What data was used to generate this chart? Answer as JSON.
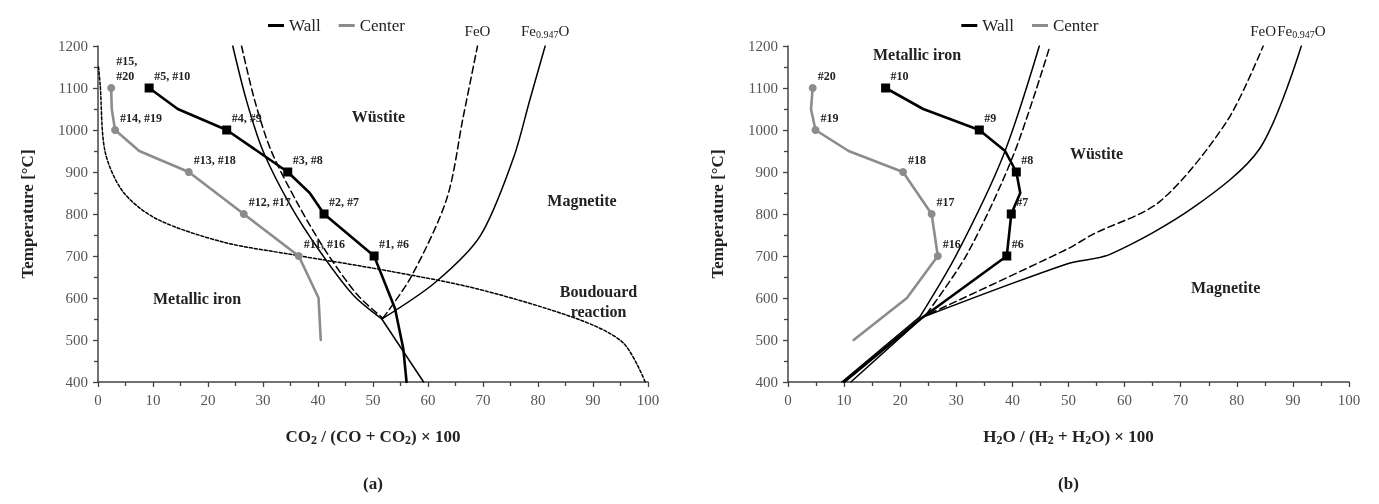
{
  "chart_data": [
    {
      "type": "line",
      "xlabel": "CO$_{2}$ / (CO + CO$_{2}$) × 100",
      "ylabel": "Temperature [°C]",
      "xlim": [
        0,
        100
      ],
      "xticks": [
        0,
        10,
        20,
        30,
        40,
        50,
        60,
        70,
        80,
        90,
        100
      ],
      "ylim": [
        400,
        1200
      ],
      "yticks": [
        400,
        500,
        600,
        700,
        800,
        900,
        1000,
        1100,
        1200
      ],
      "grid": false,
      "legend": "top",
      "series": [
        {
          "name": "Wall",
          "color": "#000000",
          "marker": "square",
          "line_style": "solid",
          "x": [
            9.3,
            14.5,
            23.4,
            34.5,
            38.5,
            41.1,
            50.2,
            54,
            55.5,
            56.1
          ],
          "values": [
            1100,
            1050,
            1000,
            900,
            850,
            800,
            700,
            575,
            480,
            400
          ]
        },
        {
          "name": "Center",
          "color": "#8c8c8c",
          "marker": "circle",
          "line_style": "solid",
          "x": [
            2.4,
            2.5,
            3.1,
            7.5,
            16.5,
            26.5,
            36.5,
            40.1,
            40.5
          ],
          "values": [
            1100,
            1050,
            1000,
            950,
            900,
            800,
            700,
            600,
            500
          ]
        },
        {
          "color": "#000000",
          "marker": "none",
          "line_style": "solid",
          "x": [
            24.5,
            27,
            30,
            35,
            40.4,
            46.4,
            51.6
          ],
          "values": [
            1200,
            1070,
            950,
            820,
            710,
            607,
            550
          ]
        },
        {
          "color": "#000000",
          "marker": "none",
          "line_style": "dashed",
          "x": [
            26.1,
            28.5,
            31.5,
            36.5,
            41.5,
            47.2,
            51.8
          ],
          "values": [
            1200,
            1070,
            950,
            820,
            710,
            607,
            552
          ]
        },
        {
          "color": "#000000",
          "marker": "none",
          "line_style": "dashed",
          "x": [
            51.8,
            57,
            63.4,
            66.4,
            69
          ],
          "values": [
            552,
            652,
            836,
            1031,
            1200
          ]
        },
        {
          "color": "#000000",
          "marker": "none",
          "line_style": "solid",
          "x": [
            51.6,
            61.3,
            69.5,
            75.5,
            78.5,
            81.3
          ],
          "values": [
            550,
            637,
            748,
            932,
            1071,
            1200
          ]
        },
        {
          "color": "#000000",
          "marker": "none",
          "line_style": "solid",
          "x": [
            51.6,
            59.2
          ],
          "values": [
            550,
            400
          ]
        },
        {
          "color": "#000000",
          "marker": "none",
          "line_style": "dotted",
          "x": [
            0.1,
            0.4,
            1.3,
            4.6,
            10.7,
            22.8,
            35,
            53,
            69.5,
            87.6,
            95.5,
            99.5
          ],
          "values": [
            1150,
            1107,
            948,
            852,
            788,
            733,
            704,
            664,
            620,
            548,
            493,
            400
          ]
        }
      ],
      "annotations": [
        {
          "text": "#5, #10",
          "x": 9.3,
          "y": 1100
        },
        {
          "text": "#4, #9",
          "x": 23.4,
          "y": 1000
        },
        {
          "text": "#3, #8",
          "x": 34.5,
          "y": 900
        },
        {
          "text": "#2, #7",
          "x": 41.1,
          "y": 800
        },
        {
          "text": "#1, #6",
          "x": 50.2,
          "y": 700
        },
        {
          "text": "#15,\n#20",
          "x": 2.4,
          "y": 1100
        },
        {
          "text": "#14, #19",
          "x": 3.1,
          "y": 1000
        },
        {
          "text": "#13, #18",
          "x": 16.5,
          "y": 900
        },
        {
          "text": "#12, #17",
          "x": 26.5,
          "y": 800
        },
        {
          "text": "#11, #16",
          "x": 36.5,
          "y": 700
        },
        {
          "text": "FeO",
          "x": 69,
          "y": 1200
        },
        {
          "text": "Fe$_{0.947}$O",
          "x": 81.3,
          "y": 1200
        },
        "Wüstite",
        "Magnetite",
        "Boudouard\nreaction",
        "Metallic iron",
        "(a)"
      ]
    },
    {
      "type": "line",
      "xlabel": "H$_{2}$O / (H$_{2}$ + H$_{2}$O) × 100",
      "ylabel": "Temperature [°C]",
      "xlim": [
        0,
        100
      ],
      "xticks": [
        0,
        10,
        20,
        30,
        40,
        50,
        60,
        70,
        80,
        90,
        100
      ],
      "ylim": [
        400,
        1200
      ],
      "yticks": [
        400,
        500,
        600,
        700,
        800,
        900,
        1000,
        1100,
        1200
      ],
      "grid": false,
      "legend": "top",
      "series": [
        {
          "name": "Wall",
          "color": "#000000",
          "marker": "square",
          "line_style": "solid",
          "x": [
            17.4,
            24.1,
            34.1,
            38.7,
            40.7,
            41.4,
            39.8,
            39,
            23.6,
            10
          ],
          "values": [
            1100,
            1050,
            1000,
            950,
            900,
            850,
            800,
            700,
            550,
            400
          ]
        },
        {
          "name": "Center",
          "color": "#8c8c8c",
          "marker": "circle",
          "line_style": "solid",
          "x": [
            4.4,
            4.1,
            4.9,
            10.8,
            20.5,
            25.6,
            26.7,
            21.2,
            11.7
          ],
          "values": [
            1100,
            1050,
            1000,
            950,
            900,
            800,
            700,
            600,
            500
          ]
        },
        {
          "color": "#000000",
          "marker": "none",
          "line_style": "solid",
          "x": [
            23.5,
            30.1,
            38.4,
            44.8
          ],
          "values": [
            555,
            705,
            940,
            1200
          ]
        },
        {
          "color": "#000000",
          "marker": "none",
          "line_style": "dashed",
          "x": [
            24.7,
            31.9,
            40.2,
            46.7
          ],
          "values": [
            562,
            704,
            941,
            1200
          ]
        },
        {
          "color": "#000000",
          "marker": "none",
          "line_style": "dashed",
          "x": [
            25.3,
            49.7,
            54.4,
            66.3,
            78.2,
            84.7
          ],
          "values": [
            563,
            716,
            752,
            830,
            1020,
            1200
          ]
        },
        {
          "color": "#000000",
          "marker": "none",
          "line_style": "solid",
          "x": [
            24,
            49.7,
            57.4,
            72.2,
            84.1,
            91.5
          ],
          "values": [
            554,
            681,
            704,
            815,
            956,
            1200
          ]
        },
        {
          "color": "#000000",
          "marker": "none",
          "line_style": "solid",
          "x": [
            9.6,
            23.5
          ],
          "values": [
            400,
            555
          ]
        },
        {
          "color": "#000000",
          "marker": "none",
          "line_style": "solid",
          "x": [
            11.2,
            24
          ],
          "values": [
            400,
            554
          ]
        }
      ],
      "annotations": [
        {
          "text": "#10",
          "x": 17.4,
          "y": 1100
        },
        {
          "text": "#9",
          "x": 34.1,
          "y": 1000
        },
        {
          "text": "#8",
          "x": 40.7,
          "y": 900
        },
        {
          "text": "#7",
          "x": 39.8,
          "y": 800
        },
        {
          "text": "#6",
          "x": 39,
          "y": 700
        },
        {
          "text": "#20",
          "x": 4.4,
          "y": 1100
        },
        {
          "text": "#19",
          "x": 4.9,
          "y": 1000
        },
        {
          "text": "#18",
          "x": 20.5,
          "y": 900
        },
        {
          "text": "#17",
          "x": 25.6,
          "y": 800
        },
        {
          "text": "#16",
          "x": 26.7,
          "y": 700
        },
        {
          "text": "FeO",
          "x": 84.7,
          "y": 1200
        },
        {
          "text": "Fe$_{0.947}$O",
          "x": 91.5,
          "y": 1200
        },
        "Metallic iron",
        "Wüstite",
        "Magnetite",
        "(b)"
      ]
    }
  ]
}
